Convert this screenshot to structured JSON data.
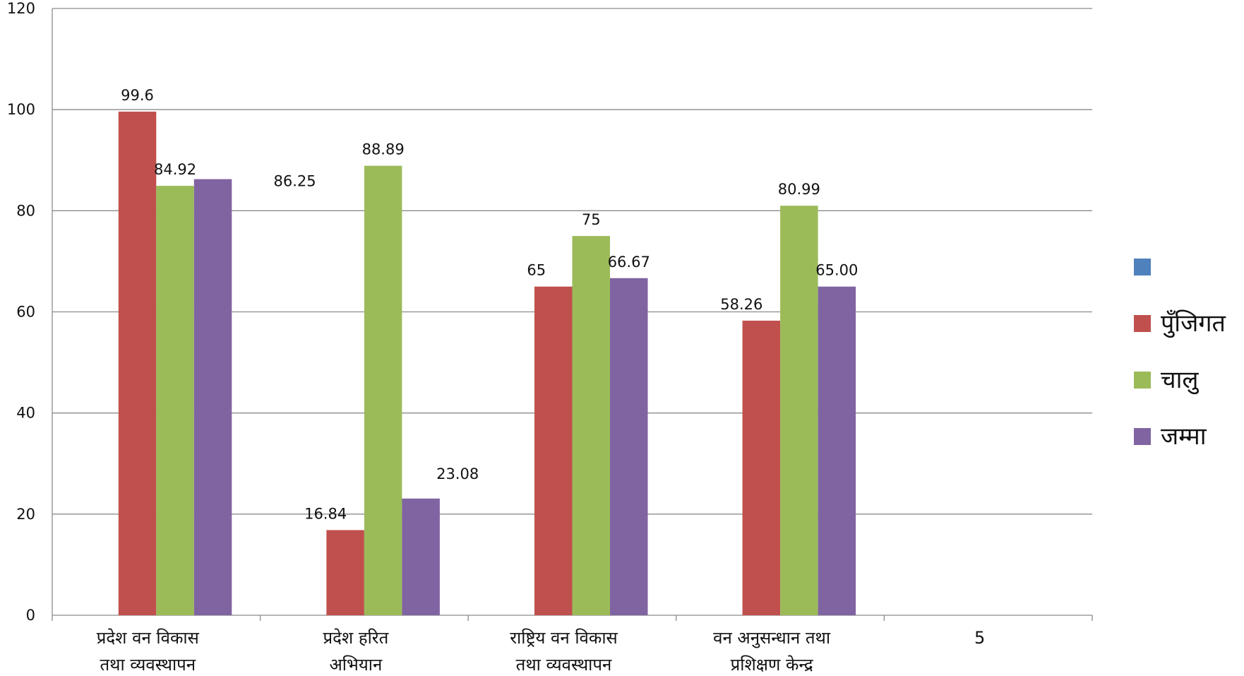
{
  "chart_data": {
    "type": "bar",
    "title": "",
    "xlabel": "",
    "ylabel": "",
    "ylim": [
      0,
      120
    ],
    "yticks": [
      "0",
      "20",
      "40",
      "60",
      "80",
      "100",
      "120"
    ],
    "grid": true,
    "legend_position": "right",
    "categories": [
      [
        "प्रदेश वन विकास",
        "तथा व्यवस्थापन"
      ],
      [
        "प्रदेश हरित",
        "अभियान"
      ],
      [
        "राष्ट्रिय वन विकास",
        "तथा व्यवस्थापन"
      ],
      [
        "वन अनुसन्धान तथा",
        "प्रशिक्षण केन्द्र"
      ],
      [
        "5"
      ]
    ],
    "series": [
      {
        "name": "",
        "color": "#4F81BD",
        "values": [
          null,
          null,
          null,
          null,
          null
        ],
        "labels": [
          "",
          "",
          "",
          "",
          ""
        ]
      },
      {
        "name": "पुँजिगत",
        "color": "#C0504D",
        "values": [
          99.6,
          16.84,
          65,
          58.26,
          null
        ],
        "labels": [
          "99.6",
          "16.84",
          "65",
          "58.26",
          ""
        ]
      },
      {
        "name": "चालु",
        "color": "#9BBB59",
        "values": [
          84.92,
          88.89,
          75,
          80.99,
          null
        ],
        "labels": [
          "84.92",
          "88.89",
          "75",
          "80.99",
          ""
        ]
      },
      {
        "name": "जम्मा",
        "color": "#8064A2",
        "values": [
          86.25,
          23.08,
          66.67,
          65.0,
          null
        ],
        "labels": [
          "86.25",
          "23.08",
          "66.67",
          "65.00",
          ""
        ]
      }
    ]
  }
}
